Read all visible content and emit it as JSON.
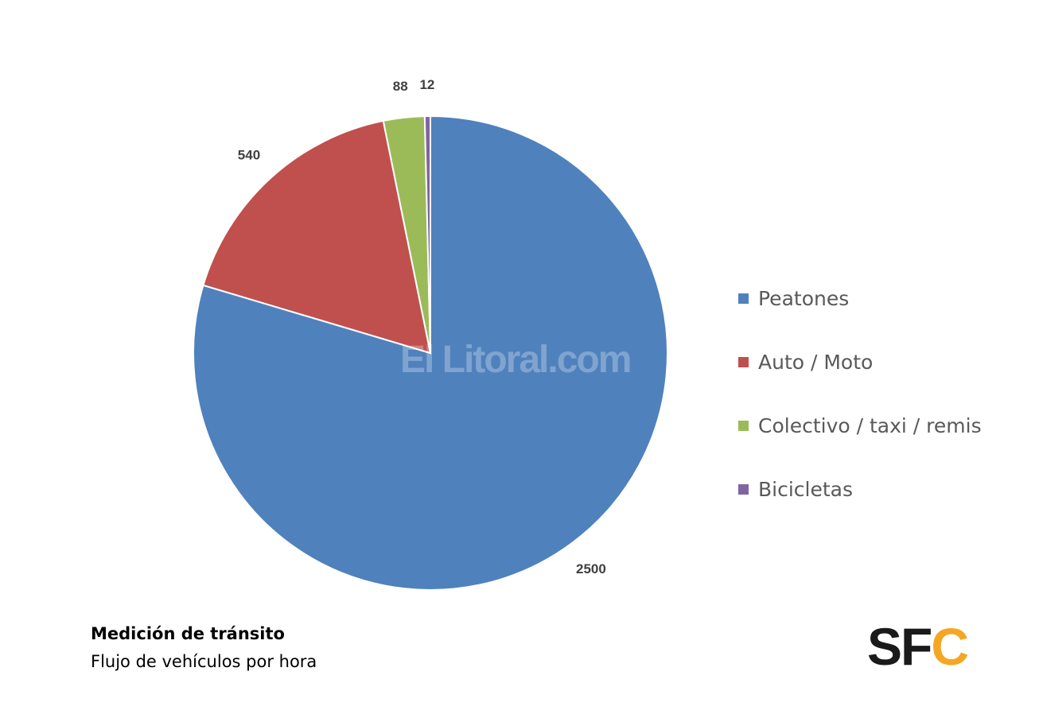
{
  "chart_data": {
    "type": "pie",
    "title": "Medición de tránsito",
    "subtitle": "Flujo de vehículos por hora",
    "start_angle": "12 o'clock, clockwise",
    "legend_position": "right",
    "slices": [
      {
        "name": "Peatones",
        "value": 2500,
        "color": "#4F81BD"
      },
      {
        "name": "Auto / Moto",
        "value": 540,
        "color": "#C0504D"
      },
      {
        "name": "Colectivo / taxi / remis",
        "value": 88,
        "color": "#9BBB59"
      },
      {
        "name": "Bicicletas",
        "value": 12,
        "color": "#8064A2"
      }
    ]
  },
  "watermark": "El Litoral.com",
  "logo": {
    "left": "SF",
    "right": "C",
    "left_color": "#1a1a1a",
    "right_color": "#F5A623"
  }
}
